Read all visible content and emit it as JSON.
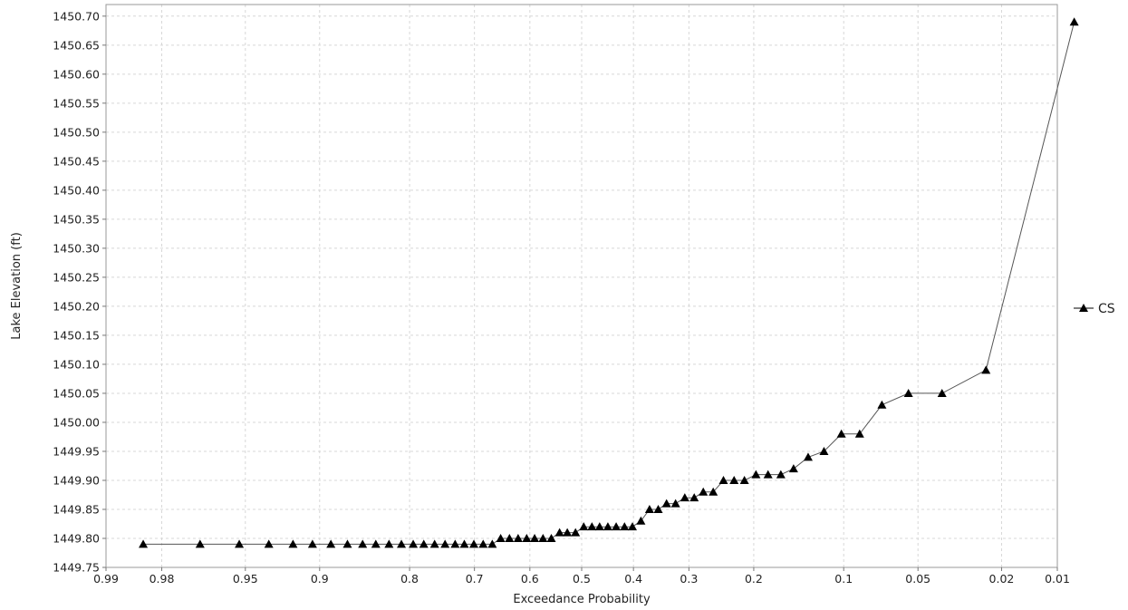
{
  "chart_data": {
    "type": "line",
    "title": "",
    "xlabel": "Exceedance Probability",
    "ylabel": "Lake Elevation (ft)",
    "x_scale": "normal-probability",
    "x_reversed": true,
    "xlim": [
      0.99,
      0.01
    ],
    "ylim": [
      1449.75,
      1450.72
    ],
    "grid": true,
    "legend": "right",
    "x_ticks": [
      0.99,
      0.98,
      0.95,
      0.9,
      0.8,
      0.7,
      0.6,
      0.5,
      0.4,
      0.3,
      0.2,
      0.1,
      0.05,
      0.02,
      0.01
    ],
    "x_tick_labels": [
      "0.99",
      "0.98",
      "0.95",
      "0.9",
      "0.8",
      "0.7",
      "0.6",
      "0.5",
      "0.4",
      "0.3",
      "0.2",
      "0.1",
      "0.05",
      "0.02",
      "0.01"
    ],
    "y_ticks": [
      1449.75,
      1449.8,
      1449.85,
      1449.9,
      1449.95,
      1450.0,
      1450.05,
      1450.1,
      1450.15,
      1450.2,
      1450.25,
      1450.3,
      1450.35,
      1450.4,
      1450.45,
      1450.5,
      1450.55,
      1450.6,
      1450.65,
      1450.7
    ],
    "y_tick_labels": [
      "1449.75",
      "1449.80",
      "1449.85",
      "1449.90",
      "1449.95",
      "1450.00",
      "1450.05",
      "1450.10",
      "1450.15",
      "1450.20",
      "1450.25",
      "1450.30",
      "1450.35",
      "1450.40",
      "1450.45",
      "1450.50",
      "1450.55",
      "1450.60",
      "1450.65",
      "1450.70"
    ],
    "series": [
      {
        "name": "CS",
        "color": "#000000",
        "marker": "triangle",
        "x": [
          0.984,
          0.969,
          0.953,
          0.937,
          0.921,
          0.906,
          0.89,
          0.874,
          0.858,
          0.843,
          0.827,
          0.811,
          0.795,
          0.78,
          0.764,
          0.748,
          0.732,
          0.717,
          0.701,
          0.685,
          0.669,
          0.654,
          0.638,
          0.622,
          0.606,
          0.591,
          0.575,
          0.559,
          0.543,
          0.528,
          0.512,
          0.496,
          0.48,
          0.465,
          0.449,
          0.433,
          0.417,
          0.402,
          0.386,
          0.37,
          0.354,
          0.339,
          0.323,
          0.307,
          0.291,
          0.276,
          0.26,
          0.244,
          0.228,
          0.213,
          0.197,
          0.181,
          0.165,
          0.15,
          0.134,
          0.118,
          0.102,
          0.087,
          0.071,
          0.055,
          0.039,
          0.024,
          0.008
        ],
        "y": [
          1449.79,
          1449.79,
          1449.79,
          1449.79,
          1449.79,
          1449.79,
          1449.79,
          1449.79,
          1449.79,
          1449.79,
          1449.79,
          1449.79,
          1449.79,
          1449.79,
          1449.79,
          1449.79,
          1449.79,
          1449.79,
          1449.79,
          1449.79,
          1449.79,
          1449.8,
          1449.8,
          1449.8,
          1449.8,
          1449.8,
          1449.8,
          1449.8,
          1449.81,
          1449.81,
          1449.81,
          1449.82,
          1449.82,
          1449.82,
          1449.82,
          1449.82,
          1449.82,
          1449.82,
          1449.83,
          1449.85,
          1449.85,
          1449.86,
          1449.86,
          1449.87,
          1449.87,
          1449.88,
          1449.88,
          1449.9,
          1449.9,
          1449.9,
          1449.91,
          1449.91,
          1449.91,
          1449.92,
          1449.94,
          1449.95,
          1449.98,
          1449.98,
          1450.03,
          1450.05,
          1450.05,
          1450.09,
          1450.69
        ]
      }
    ]
  }
}
